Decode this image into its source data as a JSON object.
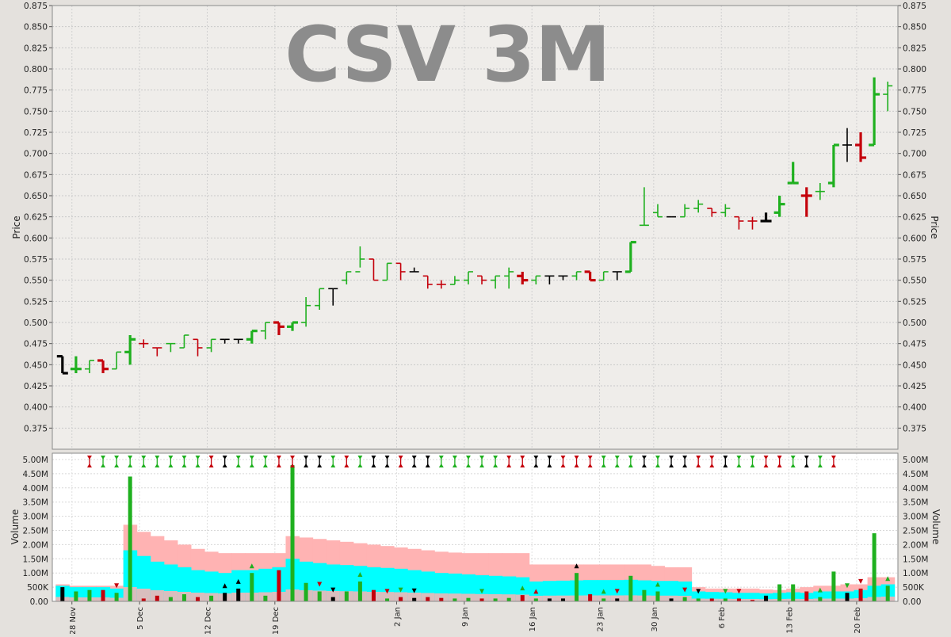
{
  "watermark": "CSV 3M",
  "colors": {
    "up": "#1fb01f",
    "down": "#c4000b",
    "neutral": "#000000",
    "volume_avg_long": "#ffb3b3",
    "volume_avg_short": "#00ffff",
    "price_bg": "#efedea",
    "volume_bg": "#ffffff"
  },
  "chart_data": [
    {
      "type": "ohlc",
      "title": "",
      "ylabel": "Price",
      "ylim": [
        0.35,
        0.875
      ],
      "yticks": [
        "0.375",
        "0.400",
        "0.425",
        "0.450",
        "0.475",
        "0.500",
        "0.525",
        "0.550",
        "0.575",
        "0.600",
        "0.625",
        "0.650",
        "0.675",
        "0.700",
        "0.725",
        "0.750",
        "0.775",
        "0.800",
        "0.825",
        "0.850",
        "0.875"
      ],
      "grid": true,
      "x_date_labels": [
        "28 Nov",
        "5 Dec",
        "12 Dec",
        "19 Dec",
        "2 Jan",
        "9 Jan",
        "16 Jan",
        "23 Jan",
        "30 Jan",
        "6 Feb",
        "13 Feb",
        "20 Feb"
      ],
      "bars": [
        {
          "o": 0.46,
          "h": 0.46,
          "l": 0.44,
          "c": 0.44,
          "dir": "neutral",
          "w": "thick"
        },
        {
          "o": 0.445,
          "h": 0.46,
          "l": 0.44,
          "c": 0.445,
          "dir": "up",
          "w": "thick"
        },
        {
          "o": 0.445,
          "h": 0.455,
          "l": 0.44,
          "c": 0.455,
          "dir": "up",
          "w": "thin"
        },
        {
          "o": 0.455,
          "h": 0.455,
          "l": 0.44,
          "c": 0.445,
          "dir": "down",
          "w": "thick"
        },
        {
          "o": 0.445,
          "h": 0.465,
          "l": 0.445,
          "c": 0.465,
          "dir": "up",
          "w": "thin"
        },
        {
          "o": 0.465,
          "h": 0.485,
          "l": 0.45,
          "c": 0.48,
          "dir": "up",
          "w": "thick"
        },
        {
          "o": 0.475,
          "h": 0.48,
          "l": 0.47,
          "c": 0.475,
          "dir": "down",
          "w": "thin"
        },
        {
          "o": 0.47,
          "h": 0.47,
          "l": 0.46,
          "c": 0.47,
          "dir": "down",
          "w": "thin"
        },
        {
          "o": 0.475,
          "h": 0.475,
          "l": 0.465,
          "c": 0.475,
          "dir": "up",
          "w": "thin"
        },
        {
          "o": 0.47,
          "h": 0.485,
          "l": 0.47,
          "c": 0.485,
          "dir": "up",
          "w": "thin"
        },
        {
          "o": 0.48,
          "h": 0.48,
          "l": 0.46,
          "c": 0.47,
          "dir": "down",
          "w": "thin"
        },
        {
          "o": 0.47,
          "h": 0.48,
          "l": 0.465,
          "c": 0.48,
          "dir": "up",
          "w": "thin"
        },
        {
          "o": 0.48,
          "h": 0.48,
          "l": 0.475,
          "c": 0.48,
          "dir": "neutral",
          "w": "thin"
        },
        {
          "o": 0.48,
          "h": 0.48,
          "l": 0.475,
          "c": 0.48,
          "dir": "neutral",
          "w": "thin"
        },
        {
          "o": 0.48,
          "h": 0.49,
          "l": 0.475,
          "c": 0.49,
          "dir": "up",
          "w": "thick"
        },
        {
          "o": 0.49,
          "h": 0.5,
          "l": 0.48,
          "c": 0.5,
          "dir": "up",
          "w": "thin"
        },
        {
          "o": 0.5,
          "h": 0.5,
          "l": 0.485,
          "c": 0.495,
          "dir": "down",
          "w": "thick"
        },
        {
          "o": 0.495,
          "h": 0.5,
          "l": 0.49,
          "c": 0.5,
          "dir": "up",
          "w": "thick"
        },
        {
          "o": 0.5,
          "h": 0.53,
          "l": 0.495,
          "c": 0.52,
          "dir": "up",
          "w": "thin"
        },
        {
          "o": 0.52,
          "h": 0.54,
          "l": 0.515,
          "c": 0.54,
          "dir": "up",
          "w": "thin"
        },
        {
          "o": 0.54,
          "h": 0.54,
          "l": 0.52,
          "c": 0.54,
          "dir": "neutral",
          "w": "thin"
        },
        {
          "o": 0.55,
          "h": 0.56,
          "l": 0.545,
          "c": 0.56,
          "dir": "up",
          "w": "thin"
        },
        {
          "o": 0.56,
          "h": 0.59,
          "l": 0.565,
          "c": 0.575,
          "dir": "up",
          "w": "thin"
        },
        {
          "o": 0.575,
          "h": 0.575,
          "l": 0.55,
          "c": 0.55,
          "dir": "down",
          "w": "thin"
        },
        {
          "o": 0.55,
          "h": 0.57,
          "l": 0.55,
          "c": 0.57,
          "dir": "up",
          "w": "thin"
        },
        {
          "o": 0.57,
          "h": 0.57,
          "l": 0.55,
          "c": 0.56,
          "dir": "down",
          "w": "thin"
        },
        {
          "o": 0.56,
          "h": 0.565,
          "l": 0.56,
          "c": 0.56,
          "dir": "neutral",
          "w": "thin"
        },
        {
          "o": 0.555,
          "h": 0.555,
          "l": 0.54,
          "c": 0.545,
          "dir": "down",
          "w": "thin"
        },
        {
          "o": 0.545,
          "h": 0.55,
          "l": 0.54,
          "c": 0.545,
          "dir": "down",
          "w": "thin"
        },
        {
          "o": 0.545,
          "h": 0.555,
          "l": 0.545,
          "c": 0.55,
          "dir": "up",
          "w": "thin"
        },
        {
          "o": 0.55,
          "h": 0.56,
          "l": 0.545,
          "c": 0.56,
          "dir": "up",
          "w": "thin"
        },
        {
          "o": 0.555,
          "h": 0.555,
          "l": 0.545,
          "c": 0.55,
          "dir": "down",
          "w": "thin"
        },
        {
          "o": 0.55,
          "h": 0.555,
          "l": 0.54,
          "c": 0.555,
          "dir": "up",
          "w": "thin"
        },
        {
          "o": 0.555,
          "h": 0.565,
          "l": 0.54,
          "c": 0.56,
          "dir": "up",
          "w": "thin"
        },
        {
          "o": 0.555,
          "h": 0.56,
          "l": 0.545,
          "c": 0.55,
          "dir": "down",
          "w": "thick"
        },
        {
          "o": 0.55,
          "h": 0.555,
          "l": 0.545,
          "c": 0.555,
          "dir": "up",
          "w": "thin"
        },
        {
          "o": 0.555,
          "h": 0.555,
          "l": 0.545,
          "c": 0.555,
          "dir": "neutral",
          "w": "thin"
        },
        {
          "o": 0.555,
          "h": 0.555,
          "l": 0.55,
          "c": 0.555,
          "dir": "neutral",
          "w": "thin"
        },
        {
          "o": 0.555,
          "h": 0.56,
          "l": 0.55,
          "c": 0.56,
          "dir": "up",
          "w": "thin"
        },
        {
          "o": 0.56,
          "h": 0.56,
          "l": 0.55,
          "c": 0.55,
          "dir": "down",
          "w": "thick"
        },
        {
          "o": 0.55,
          "h": 0.56,
          "l": 0.55,
          "c": 0.56,
          "dir": "up",
          "w": "thin"
        },
        {
          "o": 0.56,
          "h": 0.56,
          "l": 0.55,
          "c": 0.56,
          "dir": "neutral",
          "w": "thin"
        },
        {
          "o": 0.56,
          "h": 0.595,
          "l": 0.56,
          "c": 0.595,
          "dir": "up",
          "w": "thick"
        },
        {
          "o": 0.615,
          "h": 0.66,
          "l": 0.615,
          "c": 0.615,
          "dir": "up",
          "w": "thin"
        },
        {
          "o": 0.63,
          "h": 0.64,
          "l": 0.625,
          "c": 0.625,
          "dir": "up",
          "w": "thin"
        },
        {
          "o": 0.625,
          "h": 0.625,
          "l": 0.625,
          "c": 0.625,
          "dir": "neutral",
          "w": "thin"
        },
        {
          "o": 0.625,
          "h": 0.64,
          "l": 0.625,
          "c": 0.635,
          "dir": "up",
          "w": "thin"
        },
        {
          "o": 0.635,
          "h": 0.645,
          "l": 0.63,
          "c": 0.64,
          "dir": "up",
          "w": "thin"
        },
        {
          "o": 0.635,
          "h": 0.635,
          "l": 0.625,
          "c": 0.63,
          "dir": "down",
          "w": "thin"
        },
        {
          "o": 0.63,
          "h": 0.64,
          "l": 0.625,
          "c": 0.635,
          "dir": "up",
          "w": "thin"
        },
        {
          "o": 0.625,
          "h": 0.625,
          "l": 0.61,
          "c": 0.62,
          "dir": "down",
          "w": "thin"
        },
        {
          "o": 0.62,
          "h": 0.625,
          "l": 0.61,
          "c": 0.62,
          "dir": "down",
          "w": "thin"
        },
        {
          "o": 0.62,
          "h": 0.63,
          "l": 0.62,
          "c": 0.62,
          "dir": "neutral",
          "w": "thick"
        },
        {
          "o": 0.63,
          "h": 0.65,
          "l": 0.625,
          "c": 0.64,
          "dir": "up",
          "w": "thick"
        },
        {
          "o": 0.665,
          "h": 0.69,
          "l": 0.665,
          "c": 0.665,
          "dir": "up",
          "w": "thick"
        },
        {
          "o": 0.65,
          "h": 0.66,
          "l": 0.625,
          "c": 0.65,
          "dir": "down",
          "w": "thick"
        },
        {
          "o": 0.655,
          "h": 0.665,
          "l": 0.645,
          "c": 0.655,
          "dir": "up",
          "w": "thin"
        },
        {
          "o": 0.665,
          "h": 0.71,
          "l": 0.66,
          "c": 0.71,
          "dir": "up",
          "w": "thick"
        },
        {
          "o": 0.71,
          "h": 0.73,
          "l": 0.69,
          "c": 0.71,
          "dir": "neutral",
          "w": "thin"
        },
        {
          "o": 0.71,
          "h": 0.725,
          "l": 0.69,
          "c": 0.695,
          "dir": "down",
          "w": "thick"
        },
        {
          "o": 0.71,
          "h": 0.79,
          "l": 0.71,
          "c": 0.77,
          "dir": "up",
          "w": "thick"
        },
        {
          "o": 0.77,
          "h": 0.785,
          "l": 0.75,
          "c": 0.78,
          "dir": "up",
          "w": "thin"
        }
      ]
    },
    {
      "type": "bar",
      "title": "",
      "ylabel": "Volume",
      "ylim": [
        0,
        5.0
      ],
      "yticks": [
        "0.00",
        "500K",
        "1.00M",
        "1.50M",
        "2.00M",
        "2.50M",
        "3.00M",
        "3.50M",
        "4.00M",
        "4.50M",
        "5.00M"
      ],
      "grid": true,
      "unit": "millions",
      "values": [
        0.5,
        0.35,
        0.4,
        0.4,
        0.3,
        4.4,
        0.1,
        0.2,
        0.15,
        0.25,
        0.15,
        0.2,
        0.3,
        0.45,
        1.0,
        0.2,
        1.1,
        4.8,
        0.65,
        0.35,
        0.15,
        0.35,
        0.7,
        0.4,
        0.1,
        0.15,
        0.12,
        0.15,
        0.12,
        0.1,
        0.12,
        0.1,
        0.1,
        0.12,
        0.22,
        0.1,
        0.1,
        0.1,
        1.0,
        0.25,
        0.1,
        0.1,
        0.9,
        0.4,
        0.35,
        0.1,
        0.15,
        0.1,
        0.1,
        0.1,
        0.1,
        0.05,
        0.2,
        0.6,
        0.6,
        0.35,
        0.15,
        1.05,
        0.3,
        0.45,
        2.4,
        0.55
      ],
      "avg_long": [
        0.6,
        0.55,
        0.55,
        0.55,
        0.55,
        2.7,
        2.45,
        2.3,
        2.15,
        2.0,
        1.85,
        1.75,
        1.7,
        1.7,
        1.7,
        1.7,
        1.7,
        2.3,
        2.25,
        2.2,
        2.15,
        2.1,
        2.05,
        2.0,
        1.95,
        1.9,
        1.85,
        1.8,
        1.75,
        1.72,
        1.7,
        1.7,
        1.7,
        1.7,
        1.7,
        1.3,
        1.3,
        1.3,
        1.3,
        1.3,
        1.3,
        1.3,
        1.3,
        1.3,
        1.25,
        1.2,
        1.2,
        0.5,
        0.45,
        0.45,
        0.45,
        0.45,
        0.42,
        0.4,
        0.45,
        0.5,
        0.55,
        0.55,
        0.6,
        0.6,
        0.85,
        0.85
      ],
      "avg_short": [
        0.55,
        0.5,
        0.5,
        0.5,
        0.45,
        1.8,
        1.6,
        1.4,
        1.3,
        1.2,
        1.1,
        1.05,
        1.0,
        1.1,
        1.1,
        1.15,
        1.2,
        1.5,
        1.4,
        1.35,
        1.3,
        1.28,
        1.25,
        1.2,
        1.18,
        1.15,
        1.1,
        1.05,
        1.0,
        0.98,
        0.95,
        0.92,
        0.9,
        0.88,
        0.85,
        0.7,
        0.72,
        0.73,
        0.74,
        0.75,
        0.75,
        0.75,
        0.76,
        0.74,
        0.72,
        0.72,
        0.7,
        0.35,
        0.33,
        0.32,
        0.3,
        0.3,
        0.28,
        0.3,
        0.32,
        0.3,
        0.35,
        0.35,
        0.35,
        0.4,
        0.55,
        0.6
      ]
    }
  ],
  "signals": {
    "top_row": [
      "",
      "red",
      "green",
      "green",
      "green",
      "green",
      "green",
      "green",
      "green",
      "green",
      "red",
      "black",
      "green",
      "green",
      "green",
      "red",
      "red",
      "black",
      "black",
      "green",
      "red",
      "green",
      "black",
      "black",
      "red",
      "black",
      "black",
      "green",
      "green",
      "green",
      "green",
      "green",
      "red",
      "red",
      "black",
      "black",
      "red",
      "red",
      "red",
      "green",
      "green",
      "green",
      "black",
      "green",
      "black",
      "black",
      "red",
      "red",
      "black",
      "green",
      "green",
      "red",
      "red",
      "green",
      "black",
      "green",
      "red"
    ],
    "bottom_markers": [
      {
        "i": 4,
        "type": "down",
        "dir": "down"
      },
      {
        "i": 14,
        "type": "up",
        "dir": "up"
      },
      {
        "i": 12,
        "type": "up",
        "dir": "neutral"
      },
      {
        "i": 13,
        "type": "up",
        "dir": "neutral"
      },
      {
        "i": 19,
        "type": "down",
        "dir": "down"
      },
      {
        "i": 20,
        "type": "down",
        "dir": "neutral"
      },
      {
        "i": 22,
        "type": "up",
        "dir": "up"
      },
      {
        "i": 24,
        "type": "down",
        "dir": "down"
      },
      {
        "i": 25,
        "type": "down",
        "dir": "up"
      },
      {
        "i": 26,
        "type": "down",
        "dir": "neutral"
      },
      {
        "i": 31,
        "type": "down",
        "dir": "up"
      },
      {
        "i": 34,
        "type": "up",
        "dir": "up"
      },
      {
        "i": 35,
        "type": "up",
        "dir": "down"
      },
      {
        "i": 38,
        "type": "up",
        "dir": "neutral"
      },
      {
        "i": 40,
        "type": "up",
        "dir": "up"
      },
      {
        "i": 41,
        "type": "down",
        "dir": "down"
      },
      {
        "i": 44,
        "type": "up",
        "dir": "up"
      },
      {
        "i": 46,
        "type": "down",
        "dir": "down"
      },
      {
        "i": 47,
        "type": "down",
        "dir": "neutral"
      },
      {
        "i": 49,
        "type": "down",
        "dir": "up"
      },
      {
        "i": 50,
        "type": "down",
        "dir": "down"
      },
      {
        "i": 56,
        "type": "up",
        "dir": "up"
      },
      {
        "i": 58,
        "type": "down",
        "dir": "up"
      },
      {
        "i": 59,
        "type": "down",
        "dir": "down"
      },
      {
        "i": 61,
        "type": "up",
        "dir": "up"
      }
    ]
  }
}
